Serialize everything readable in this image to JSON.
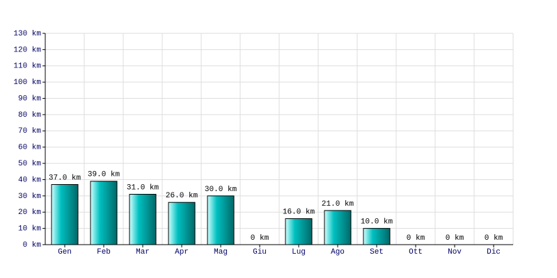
{
  "chart_data": {
    "type": "bar",
    "categories": [
      "Gen",
      "Feb",
      "Mar",
      "Apr",
      "Mag",
      "Giu",
      "Lug",
      "Ago",
      "Set",
      "Ott",
      "Nov",
      "Dic"
    ],
    "values": [
      37,
      39,
      31,
      26,
      30,
      0,
      16,
      21,
      10,
      0,
      0,
      0
    ],
    "value_labels": [
      "37.0 km",
      "39.0 km",
      "31.0 km",
      "26.0 km",
      "30.0 km",
      "0 km",
      "16.0 km",
      "21.0 km",
      "10.0 km",
      "0 km",
      "0 km",
      "0 km"
    ],
    "color": "#00c0c0",
    "ylim": [
      0,
      130
    ],
    "yticks": [
      {
        "value": 0,
        "label": "0 km"
      },
      {
        "value": 10,
        "label": "10 km"
      },
      {
        "value": 20,
        "label": "20 km"
      },
      {
        "value": 30,
        "label": "30 km"
      },
      {
        "value": 40,
        "label": "40 km"
      },
      {
        "value": 50,
        "label": "50 km"
      },
      {
        "value": 60,
        "label": "60 km"
      },
      {
        "value": 70,
        "label": "70 km"
      },
      {
        "value": 80,
        "label": "80 km"
      },
      {
        "value": 90,
        "label": "90 km"
      },
      {
        "value": 100,
        "label": "100 km"
      },
      {
        "value": 110,
        "label": "110 km"
      },
      {
        "value": 120,
        "label": "120 km"
      },
      {
        "value": 130,
        "label": "130 km"
      }
    ],
    "grid": true
  }
}
